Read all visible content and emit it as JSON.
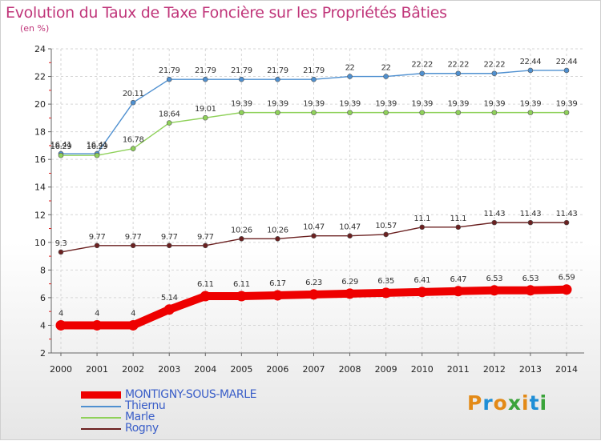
{
  "title": "Evolution du Taux de Taxe Foncière sur les Propriétés Bâties",
  "unit_label": "(en %)",
  "logo": {
    "text": "Proxiti",
    "colors": [
      "#e38a17",
      "#1f8ed6",
      "#e38a17",
      "#3aa33a",
      "#e38a17",
      "#1f8ed6",
      "#3aa33a"
    ]
  },
  "chart_data": {
    "type": "line",
    "title": "Evolution du Taux de Taxe Foncière sur les Propriétés Bâties",
    "ylabel": "(en %)",
    "xlabel": "",
    "ylim": [
      2,
      24
    ],
    "yticks": [
      2,
      4,
      6,
      8,
      10,
      12,
      14,
      16,
      18,
      20,
      22,
      24
    ],
    "grid": true,
    "legend_position": "bottom-left",
    "categories": [
      "2000",
      "2001",
      "2002",
      "2003",
      "2004",
      "2005",
      "2006",
      "2007",
      "2008",
      "2009",
      "2010",
      "2011",
      "2012",
      "2013",
      "2014"
    ],
    "series": [
      {
        "name": "MONTIGNY-SOUS-MARLE",
        "color": "#ee0000",
        "emphasis": true,
        "values": [
          4,
          4,
          4,
          5.14,
          6.11,
          6.11,
          6.17,
          6.23,
          6.29,
          6.35,
          6.41,
          6.47,
          6.53,
          6.53,
          6.59
        ],
        "labels": [
          "4",
          "4",
          "4",
          "5.14",
          "6.11",
          "6.11",
          "6.17",
          "6.23",
          "6.29",
          "6.35",
          "6.41",
          "6.47",
          "6.53",
          "6.53",
          "6.59"
        ]
      },
      {
        "name": "Thiernu",
        "color": "#4f90d0",
        "emphasis": false,
        "values": [
          16.41,
          16.41,
          20.11,
          21.79,
          21.79,
          21.79,
          21.79,
          21.79,
          22,
          22,
          22.22,
          22.22,
          22.22,
          22.44,
          22.44
        ],
        "labels": [
          "16.41",
          "16.41",
          "20.11",
          "21.79",
          "21.79",
          "21.79",
          "21.79",
          "21.79",
          "22",
          "22",
          "22.22",
          "22.22",
          "22.22",
          "22.44",
          "22.44"
        ]
      },
      {
        "name": "Marle",
        "color": "#8fd15a",
        "emphasis": false,
        "values": [
          16.29,
          16.29,
          16.78,
          18.64,
          19.01,
          19.39,
          19.39,
          19.39,
          19.39,
          19.39,
          19.39,
          19.39,
          19.39,
          19.39,
          19.39
        ],
        "labels": [
          "16.29",
          "16.29",
          "16.78",
          "18.64",
          "19.01",
          "19.39",
          "19.39",
          "19.39",
          "19.39",
          "19.39",
          "19.39",
          "19.39",
          "19.39",
          "19.39",
          "19.39"
        ]
      },
      {
        "name": "Rogny",
        "color": "#6b2121",
        "emphasis": false,
        "values": [
          9.3,
          9.77,
          9.77,
          9.77,
          9.77,
          10.26,
          10.26,
          10.47,
          10.47,
          10.57,
          11.1,
          11.1,
          11.43,
          11.43,
          11.43
        ],
        "labels": [
          "9.3",
          "9.77",
          "9.77",
          "9.77",
          "9.77",
          "10.26",
          "10.26",
          "10.47",
          "10.47",
          "10.57",
          "11.1",
          "11.1",
          "11.43",
          "11.43",
          "11.43"
        ]
      }
    ]
  },
  "legend": {
    "items": [
      {
        "label": "MONTIGNY-SOUS-MARLE",
        "color": "#ee0000",
        "text_color": "#3a5ec8"
      },
      {
        "label": "Thiernu",
        "color": "#4f90d0",
        "text_color": "#3a5ec8"
      },
      {
        "label": "Marle",
        "color": "#8fd15a",
        "text_color": "#3a5ec8"
      },
      {
        "label": "Rogny",
        "color": "#6b2121",
        "text_color": "#3a5ec8"
      }
    ]
  }
}
